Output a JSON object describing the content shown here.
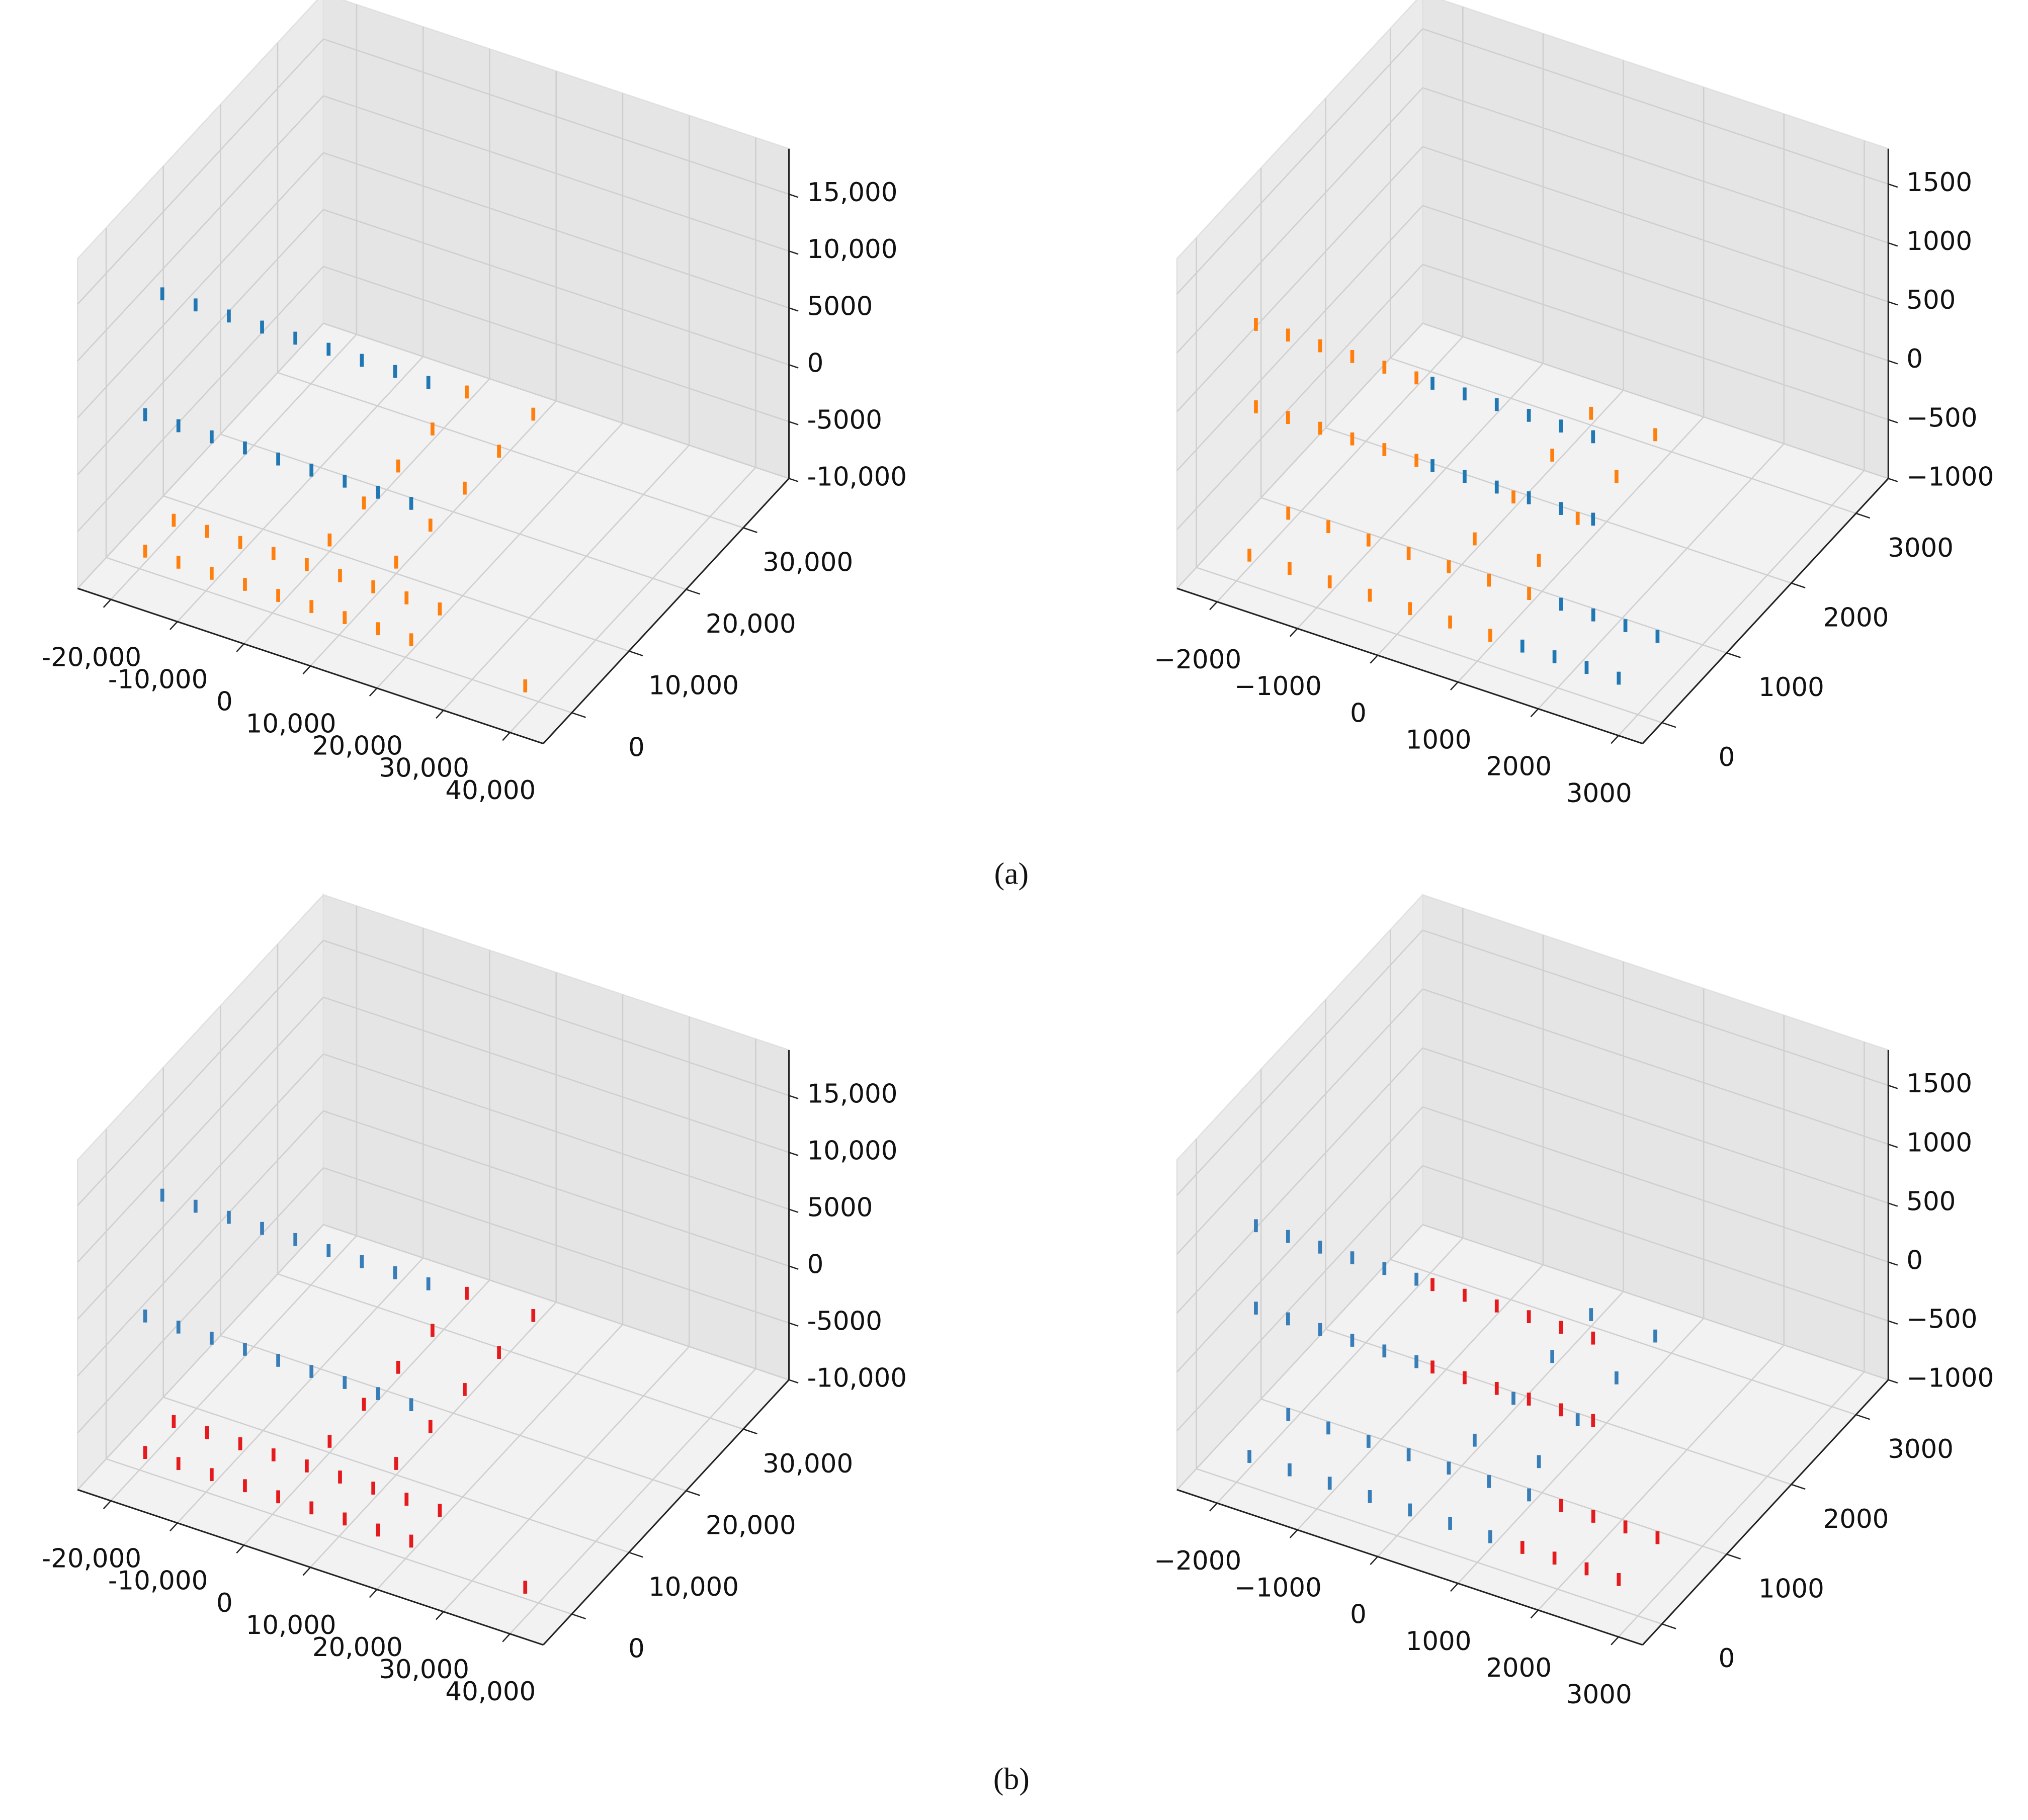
{
  "chart_data": [
    {
      "type": "scatter3d",
      "xlim": [
        -25000,
        45000
      ],
      "ylim": [
        -5000,
        38000
      ],
      "zlim": [
        -10000,
        19000
      ],
      "xticks": [
        {
          "value": -20000,
          "label": "-20,000"
        },
        {
          "value": -10000,
          "label": "-10,000"
        },
        0,
        {
          "value": 10000,
          "label": "10,000"
        },
        {
          "value": 20000,
          "label": "20,000"
        },
        {
          "value": 30000,
          "label": "30,000"
        },
        {
          "value": 40000,
          "label": "40,000"
        }
      ],
      "yticks": [
        0,
        {
          "value": 10000,
          "label": "10,000"
        },
        {
          "value": 20000,
          "label": "20,000"
        },
        {
          "value": 30000,
          "label": "30,000"
        }
      ],
      "zticks": [
        {
          "value": -10000,
          "label": "-10,000"
        },
        -5000,
        0,
        5000,
        {
          "value": 10000,
          "label": "10,000"
        },
        {
          "value": 15000,
          "label": "15,000"
        }
      ],
      "series": [
        {
          "color": "#1f77b4",
          "x": [
            -20000,
            -15000,
            -10000,
            -5000,
            0,
            5000,
            10000,
            15000,
            20000,
            -20000,
            -15000,
            -10000,
            -5000,
            0,
            5000,
            10000,
            15000,
            20000
          ],
          "y": [
            4000,
            4000,
            4000,
            4000,
            4000,
            4000,
            4000,
            4000,
            4000,
            1000,
            1000,
            1000,
            1000,
            1000,
            1000,
            1000,
            1000,
            1000
          ],
          "z": [
            12000,
            12000,
            12000,
            12000,
            12000,
            12000,
            12000,
            12000,
            12000,
            3000,
            3000,
            3000,
            3000,
            3000,
            3000,
            3000,
            3000,
            3000
          ]
        },
        {
          "color": "#ff7f0e",
          "x": [
            -20000,
            -15000,
            -10000,
            -5000,
            0,
            5000,
            10000,
            15000,
            20000,
            -20000,
            -15000,
            -10000,
            -5000,
            0,
            5000,
            10000,
            15000,
            20000,
            0,
            0,
            0,
            0,
            0,
            10000,
            10000,
            10000,
            10000,
            10000,
            38000
          ],
          "y": [
            6000,
            6000,
            6000,
            6000,
            6000,
            6000,
            6000,
            6000,
            6000,
            1000,
            1000,
            1000,
            1000,
            1000,
            1000,
            1000,
            1000,
            1000,
            10000,
            16000,
            22000,
            28000,
            34000,
            10000,
            16000,
            22000,
            28000,
            34000,
            0
          ],
          "z": [
            -9000,
            -9000,
            -9000,
            -9000,
            -9000,
            -9000,
            -9000,
            -9000,
            -9000,
            -9000,
            -9000,
            -9000,
            -9000,
            -9000,
            -9000,
            -9000,
            -9000,
            -9000,
            -9000,
            -9000,
            -9000,
            -9000,
            -9000,
            -9000,
            -9000,
            -9000,
            -9000,
            -9000,
            -9000
          ]
        }
      ]
    },
    {
      "type": "scatter3d",
      "xlim": [
        -2500,
        3300
      ],
      "ylim": [
        -300,
        3500
      ],
      "zlim": [
        -1000,
        1800
      ],
      "xticks": [
        {
          "value": -2000,
          "label": "−2000"
        },
        {
          "value": -1000,
          "label": "−1000"
        },
        0,
        1000,
        2000,
        3000
      ],
      "yticks": [
        0,
        1000,
        2000,
        3000
      ],
      "zticks": [
        {
          "value": -1000,
          "label": "−1000"
        },
        {
          "value": -500,
          "label": "−500"
        },
        0,
        500,
        1000,
        1500
      ],
      "series": [
        {
          "color": "#ff7f0e",
          "x": [
            -2000,
            -1600,
            -1200,
            -800,
            -400,
            0,
            -2000,
            -1600,
            -1200,
            -800,
            -400,
            0,
            -2000,
            -1500,
            -1000,
            -500,
            0,
            500,
            1000,
            -2000,
            -1500,
            -1000,
            -500,
            0,
            500,
            1000,
            0,
            0,
            0,
            0,
            800,
            800,
            800,
            800
          ],
          "y": [
            300,
            300,
            300,
            300,
            300,
            300,
            300,
            300,
            300,
            300,
            300,
            300,
            800,
            800,
            800,
            800,
            800,
            800,
            800,
            200,
            200,
            200,
            200,
            200,
            200,
            200,
            1200,
            1800,
            2400,
            3000,
            1200,
            1800,
            2400,
            3000
          ],
          "z": [
            1000,
            1000,
            1000,
            1000,
            1000,
            1000,
            300,
            300,
            300,
            300,
            300,
            300,
            -900,
            -900,
            -900,
            -900,
            -900,
            -900,
            -900,
            -900,
            -900,
            -900,
            -900,
            -900,
            -900,
            -900,
            -900,
            -900,
            -900,
            -900,
            -900,
            -900,
            -900,
            -900
          ]
        },
        {
          "color": "#1f77b4",
          "x": [
            200,
            600,
            1000,
            1400,
            1800,
            2200,
            200,
            600,
            1000,
            1400,
            1800,
            2200,
            1400,
            1800,
            2200,
            2600,
            1400,
            1800,
            2200,
            2600
          ],
          "y": [
            300,
            300,
            300,
            300,
            300,
            300,
            300,
            300,
            300,
            300,
            300,
            300,
            200,
            200,
            200,
            200,
            800,
            800,
            800,
            800
          ],
          "z": [
            1000,
            1000,
            1000,
            1000,
            1000,
            1000,
            300,
            300,
            300,
            300,
            300,
            300,
            -900,
            -900,
            -900,
            -900,
            -900,
            -900,
            -900,
            -900
          ]
        }
      ]
    },
    {
      "type": "scatter3d",
      "xlim": [
        -25000,
        45000
      ],
      "ylim": [
        -5000,
        38000
      ],
      "zlim": [
        -10000,
        19000
      ],
      "xticks": [
        {
          "value": -20000,
          "label": "-20,000"
        },
        {
          "value": -10000,
          "label": "-10,000"
        },
        0,
        {
          "value": 10000,
          "label": "10,000"
        },
        {
          "value": 20000,
          "label": "20,000"
        },
        {
          "value": 30000,
          "label": "30,000"
        },
        {
          "value": 40000,
          "label": "40,000"
        }
      ],
      "yticks": [
        0,
        {
          "value": 10000,
          "label": "10,000"
        },
        {
          "value": 20000,
          "label": "20,000"
        },
        {
          "value": 30000,
          "label": "30,000"
        }
      ],
      "zticks": [
        {
          "value": -10000,
          "label": "-10,000"
        },
        -5000,
        0,
        5000,
        {
          "value": 10000,
          "label": "10,000"
        },
        {
          "value": 15000,
          "label": "15,000"
        }
      ],
      "series": [
        {
          "color": "#377eb8",
          "x": [
            -20000,
            -15000,
            -10000,
            -5000,
            0,
            5000,
            10000,
            15000,
            20000,
            -20000,
            -15000,
            -10000,
            -5000,
            0,
            5000,
            10000,
            15000,
            20000
          ],
          "y": [
            4000,
            4000,
            4000,
            4000,
            4000,
            4000,
            4000,
            4000,
            4000,
            1000,
            1000,
            1000,
            1000,
            1000,
            1000,
            1000,
            1000,
            1000
          ],
          "z": [
            12000,
            12000,
            12000,
            12000,
            12000,
            12000,
            12000,
            12000,
            12000,
            3000,
            3000,
            3000,
            3000,
            3000,
            3000,
            3000,
            3000,
            3000
          ]
        },
        {
          "color": "#e41a1c",
          "x": [
            -20000,
            -15000,
            -10000,
            -5000,
            0,
            5000,
            10000,
            15000,
            20000,
            -20000,
            -15000,
            -10000,
            -5000,
            0,
            5000,
            10000,
            15000,
            20000,
            0,
            0,
            0,
            0,
            0,
            10000,
            10000,
            10000,
            10000,
            10000,
            38000
          ],
          "y": [
            6000,
            6000,
            6000,
            6000,
            6000,
            6000,
            6000,
            6000,
            6000,
            1000,
            1000,
            1000,
            1000,
            1000,
            1000,
            1000,
            1000,
            1000,
            10000,
            16000,
            22000,
            28000,
            34000,
            10000,
            16000,
            22000,
            28000,
            34000,
            0
          ],
          "z": [
            -9000,
            -9000,
            -9000,
            -9000,
            -9000,
            -9000,
            -9000,
            -9000,
            -9000,
            -9000,
            -9000,
            -9000,
            -9000,
            -9000,
            -9000,
            -9000,
            -9000,
            -9000,
            -9000,
            -9000,
            -9000,
            -9000,
            -9000,
            -9000,
            -9000,
            -9000,
            -9000,
            -9000,
            -9000
          ]
        }
      ]
    },
    {
      "type": "scatter3d",
      "xlim": [
        -2500,
        3300
      ],
      "ylim": [
        -300,
        3500
      ],
      "zlim": [
        -1000,
        1800
      ],
      "xticks": [
        {
          "value": -2000,
          "label": "−2000"
        },
        {
          "value": -1000,
          "label": "−1000"
        },
        0,
        1000,
        2000,
        3000
      ],
      "yticks": [
        0,
        1000,
        2000,
        3000
      ],
      "zticks": [
        {
          "value": -1000,
          "label": "−1000"
        },
        {
          "value": -500,
          "label": "−500"
        },
        0,
        500,
        1000,
        1500
      ],
      "series": [
        {
          "color": "#377eb8",
          "x": [
            -2000,
            -1600,
            -1200,
            -800,
            -400,
            0,
            -2000,
            -1600,
            -1200,
            -800,
            -400,
            0,
            -2000,
            -1500,
            -1000,
            -500,
            0,
            500,
            1000,
            -2000,
            -1500,
            -1000,
            -500,
            0,
            500,
            1000,
            0,
            0,
            0,
            0,
            800,
            800,
            800,
            800
          ],
          "y": [
            300,
            300,
            300,
            300,
            300,
            300,
            300,
            300,
            300,
            300,
            300,
            300,
            800,
            800,
            800,
            800,
            800,
            800,
            800,
            200,
            200,
            200,
            200,
            200,
            200,
            200,
            1200,
            1800,
            2400,
            3000,
            1200,
            1800,
            2400,
            3000
          ],
          "z": [
            1000,
            1000,
            1000,
            1000,
            1000,
            1000,
            300,
            300,
            300,
            300,
            300,
            300,
            -900,
            -900,
            -900,
            -900,
            -900,
            -900,
            -900,
            -900,
            -900,
            -900,
            -900,
            -900,
            -900,
            -900,
            -900,
            -900,
            -900,
            -900,
            -900,
            -900,
            -900,
            -900
          ]
        },
        {
          "color": "#e41a1c",
          "x": [
            200,
            600,
            1000,
            1400,
            1800,
            2200,
            200,
            600,
            1000,
            1400,
            1800,
            2200,
            1400,
            1800,
            2200,
            2600,
            1400,
            1800,
            2200,
            2600
          ],
          "y": [
            300,
            300,
            300,
            300,
            300,
            300,
            300,
            300,
            300,
            300,
            300,
            300,
            200,
            200,
            200,
            200,
            800,
            800,
            800,
            800
          ],
          "z": [
            1000,
            1000,
            1000,
            1000,
            1000,
            1000,
            300,
            300,
            300,
            300,
            300,
            300,
            -900,
            -900,
            -900,
            -900,
            -900,
            -900,
            -900,
            -900
          ]
        }
      ]
    }
  ],
  "captions": [
    "(a)",
    "(b)"
  ]
}
